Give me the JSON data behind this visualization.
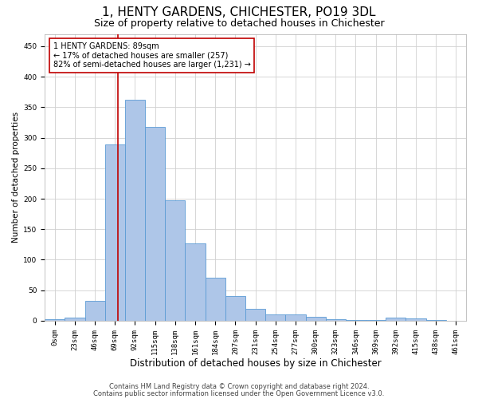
{
  "title1": "1, HENTY GARDENS, CHICHESTER, PO19 3DL",
  "title2": "Size of property relative to detached houses in Chichester",
  "xlabel": "Distribution of detached houses by size in Chichester",
  "ylabel": "Number of detached properties",
  "bar_values": [
    3,
    5,
    33,
    289,
    362,
    318,
    197,
    127,
    70,
    40,
    20,
    10,
    10,
    7,
    2,
    1,
    1,
    5,
    4,
    1,
    0
  ],
  "x_labels": [
    "0sqm",
    "23sqm",
    "46sqm",
    "69sqm",
    "92sqm",
    "115sqm",
    "138sqm",
    "161sqm",
    "184sqm",
    "207sqm",
    "231sqm",
    "254sqm",
    "277sqm",
    "300sqm",
    "323sqm",
    "346sqm",
    "369sqm",
    "392sqm",
    "415sqm",
    "438sqm",
    "461sqm"
  ],
  "bar_color": "#aec6e8",
  "bar_edge_color": "#5b9bd5",
  "bar_width": 1.0,
  "ylim": [
    0,
    470
  ],
  "yticks": [
    0,
    50,
    100,
    150,
    200,
    250,
    300,
    350,
    400,
    450
  ],
  "vline_x": 3.65,
  "vline_color": "#c00000",
  "annotation_text": "1 HENTY GARDENS: 89sqm\n← 17% of detached houses are smaller (257)\n82% of semi-detached houses are larger (1,231) →",
  "annotation_box_color": "#ffffff",
  "annotation_box_edge": "#c00000",
  "footer1": "Contains HM Land Registry data © Crown copyright and database right 2024.",
  "footer2": "Contains public sector information licensed under the Open Government Licence v3.0.",
  "bg_color": "#ffffff",
  "grid_color": "#d0d0d0",
  "title1_fontsize": 11,
  "title2_fontsize": 9,
  "xlabel_fontsize": 8.5,
  "ylabel_fontsize": 7.5,
  "tick_fontsize": 6.5,
  "annot_fontsize": 7,
  "footer_fontsize": 6
}
